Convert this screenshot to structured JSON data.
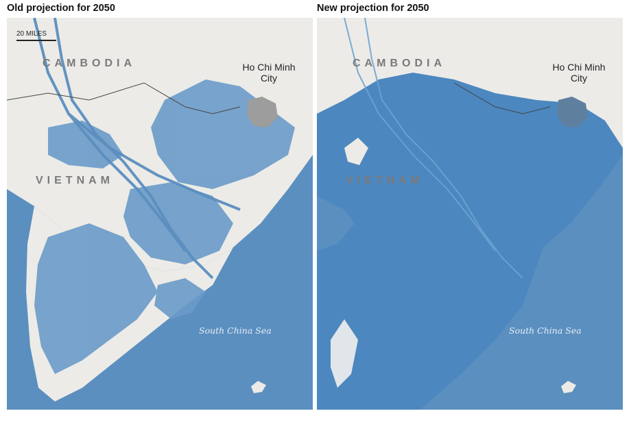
{
  "panels": [
    {
      "title": "Old projection for 2050",
      "scale_label": "20 MILES",
      "labels": {
        "cambodia": "CAMBODIA",
        "vietnam": "VIETNAM",
        "city": "Ho Chi Minh City",
        "sea": "South China Sea"
      }
    },
    {
      "title": "New projection for 2050",
      "labels": {
        "cambodia": "CAMBODIA",
        "vietnam": "VIETNAM",
        "city": "Ho Chi Minh City",
        "sea": "South China Sea"
      }
    }
  ],
  "colors": {
    "water": "#5b8fbf",
    "land": "#ecebe7",
    "flood": "#4c87bf",
    "city": "#9d9d9d"
  }
}
